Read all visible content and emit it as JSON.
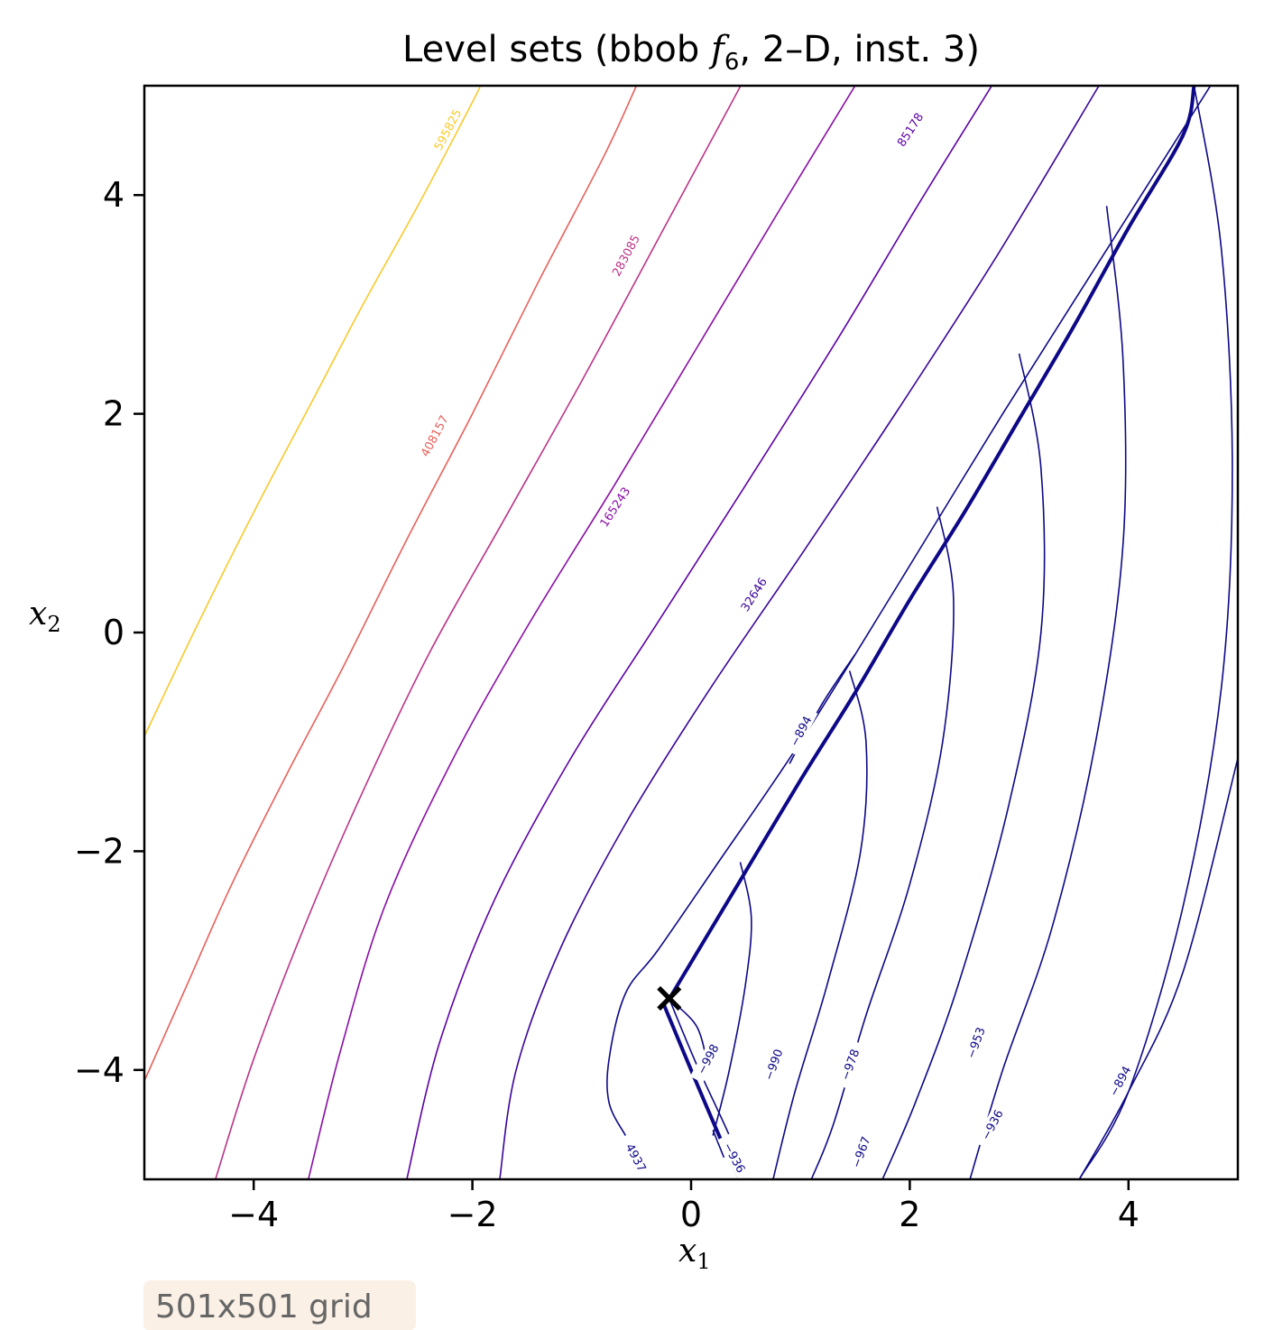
{
  "chart_data": {
    "type": "contour",
    "title_prefix": "Level sets (bbob ",
    "title_f": "f",
    "title_sub": "6",
    "title_suffix": ", 2–D, inst. 3)",
    "xlabel": "x",
    "xlabel_sub": "1",
    "ylabel": "x",
    "ylabel_sub": "2",
    "xlim": [
      -5,
      5
    ],
    "ylim": [
      -5,
      5
    ],
    "xticks": [
      -4,
      -2,
      0,
      2,
      4
    ],
    "yticks": [
      -4,
      -2,
      0,
      2,
      4
    ],
    "xtick_labels": [
      "−4",
      "−2",
      "0",
      "2",
      "4"
    ],
    "ytick_labels": [
      "−4",
      "−2",
      "0",
      "2",
      "4"
    ],
    "grid": false,
    "optimum": {
      "x": -0.2,
      "y": -3.35,
      "marker": "×",
      "color": "#000000"
    },
    "badge": "501x501 grid",
    "levels": [
      {
        "label": "595825",
        "color": "#f9c929",
        "points": [
          [
            -5,
            -0.95
          ],
          [
            -4.5,
            0.1
          ],
          [
            -4,
            1.1
          ],
          [
            -3.5,
            2.05
          ],
          [
            -3,
            3.0
          ],
          [
            -2.5,
            3.9
          ],
          [
            -2,
            4.85
          ],
          [
            -1.93,
            5
          ]
        ],
        "label_at": [
          -2.23,
          4.6
        ],
        "label_angle": -62
      },
      {
        "label": "408157",
        "color": "#e8605a",
        "points": [
          [
            -5,
            -4.1
          ],
          [
            -4.6,
            -3.2
          ],
          [
            -4.2,
            -2.3
          ],
          [
            -3.7,
            -1.3
          ],
          [
            -3.2,
            -0.35
          ],
          [
            -2.6,
            0.85
          ],
          [
            -2.0,
            2.0
          ],
          [
            -1.4,
            3.2
          ],
          [
            -0.8,
            4.35
          ],
          [
            -0.5,
            5
          ]
        ],
        "label_at": [
          -2.35,
          1.8
        ],
        "label_angle": -62
      },
      {
        "label": "283085",
        "color": "#bb3488",
        "points": [
          [
            -4.35,
            -5
          ],
          [
            -4.0,
            -3.9
          ],
          [
            -3.5,
            -2.6
          ],
          [
            -3.0,
            -1.45
          ],
          [
            -2.4,
            -0.2
          ],
          [
            -1.7,
            1.05
          ],
          [
            -1.0,
            2.3
          ],
          [
            -0.3,
            3.6
          ],
          [
            0.4,
            4.9
          ],
          [
            0.45,
            5
          ]
        ],
        "label_at": [
          -0.6,
          3.45
        ],
        "label_angle": -62
      },
      {
        "label": "165243",
        "color": "#8a0ea5",
        "points": [
          [
            -3.5,
            -5
          ],
          [
            -3.2,
            -3.8
          ],
          [
            -2.8,
            -2.5
          ],
          [
            -2.2,
            -1.2
          ],
          [
            -1.5,
            0.05
          ],
          [
            -0.7,
            1.35
          ],
          [
            0.05,
            2.6
          ],
          [
            0.8,
            3.85
          ],
          [
            1.5,
            5
          ]
        ],
        "label_at": [
          -0.7,
          1.15
        ],
        "label_angle": -57
      },
      {
        "label": "85178",
        "color": "#5c01a6",
        "points": [
          [
            -2.6,
            -5
          ],
          [
            -2.3,
            -3.75
          ],
          [
            -1.8,
            -2.45
          ],
          [
            -1.1,
            -1.15
          ],
          [
            -0.3,
            0.1
          ],
          [
            0.5,
            1.35
          ],
          [
            1.35,
            2.7
          ],
          [
            2.1,
            3.95
          ],
          [
            2.75,
            5
          ]
        ],
        "label_at": [
          2.0,
          4.6
        ],
        "label_angle": -57
      },
      {
        "label": "32646",
        "color": "#3a049a",
        "points": [
          [
            -1.75,
            -5
          ],
          [
            -1.6,
            -4.0
          ],
          [
            -1.2,
            -2.9
          ],
          [
            -0.6,
            -1.75
          ],
          [
            0.15,
            -0.55
          ],
          [
            1.0,
            0.7
          ],
          [
            1.9,
            2.05
          ],
          [
            2.8,
            3.45
          ],
          [
            3.7,
            4.95
          ],
          [
            3.73,
            5
          ]
        ],
        "label_at": [
          0.57,
          0.35
        ],
        "label_angle": -57
      },
      {
        "label": "4937",
        "color": "#0d0887",
        "points": [
          [
            -0.6,
            -4.6
          ],
          [
            -0.75,
            -4.3
          ],
          [
            -0.75,
            -3.9
          ],
          [
            -0.6,
            -3.3
          ],
          [
            -0.3,
            -2.9
          ],
          [
            0.25,
            -2.1
          ],
          [
            1.0,
            -1.0
          ],
          [
            1.9,
            0.45
          ],
          [
            2.85,
            2.0
          ],
          [
            3.8,
            3.5
          ],
          [
            4.75,
            5
          ]
        ],
        "label_at": [
          -0.5,
          -4.8
        ],
        "label_angle": 62
      },
      {
        "label": "−894",
        "color": "#0d0887",
        "points": [
          [
            3.55,
            -5
          ],
          [
            4.0,
            -4.2
          ],
          [
            4.5,
            -3.1
          ],
          [
            5,
            -1.15
          ]
        ],
        "label_at": [
          3.92,
          -4.1
        ],
        "label_angle": -62
      },
      {
        "label": "",
        "color": "#0d0887",
        "points": [
          [
            -0.2,
            -3.35
          ],
          [
            0.4,
            -2.35
          ],
          [
            1.0,
            -1.35
          ],
          [
            1.5,
            -0.55
          ],
          [
            2.0,
            0.3
          ],
          [
            2.5,
            1.1
          ],
          [
            3.0,
            1.95
          ],
          [
            3.5,
            2.8
          ],
          [
            4.0,
            3.7
          ],
          [
            4.5,
            4.55
          ],
          [
            4.6,
            5
          ]
        ],
        "label_at": null,
        "label_angle": 0
      },
      {
        "label": "−894",
        "color": "#0d0887",
        "points": [
          [
            4.6,
            5
          ],
          [
            4.85,
            3.5
          ],
          [
            4.95,
            1.5
          ],
          [
            4.85,
            -0.5
          ],
          [
            4.5,
            -2.5
          ],
          [
            4.0,
            -4.2
          ],
          [
            3.55,
            -5
          ]
        ],
        "label_at": null,
        "label_angle": 0
      },
      {
        "label": "−936",
        "color": "#0d0887",
        "points": [
          [
            3.8,
            3.9
          ],
          [
            3.95,
            2.5
          ],
          [
            3.95,
            0.8
          ],
          [
            3.7,
            -1.0
          ],
          [
            3.3,
            -2.7
          ],
          [
            2.85,
            -4.0
          ],
          [
            2.55,
            -5
          ]
        ],
        "label_at": [
          2.75,
          -4.5
        ],
        "label_angle": -62
      },
      {
        "label": "−953",
        "color": "#0d0887",
        "points": [
          [
            3.0,
            2.55
          ],
          [
            3.2,
            1.5
          ],
          [
            3.2,
            0.0
          ],
          [
            2.9,
            -1.6
          ],
          [
            2.45,
            -3.2
          ],
          [
            2.05,
            -4.3
          ],
          [
            1.75,
            -5
          ]
        ],
        "label_at": [
          2.6,
          -3.75
        ],
        "label_angle": -70
      },
      {
        "label": "−967",
        "color": "#0d0887",
        "points": [
          [
            2.25,
            1.15
          ],
          [
            2.4,
            0.3
          ],
          [
            2.3,
            -1.0
          ],
          [
            2.0,
            -2.3
          ],
          [
            1.6,
            -3.5
          ],
          [
            1.3,
            -4.5
          ],
          [
            1.1,
            -5
          ]
        ],
        "label_at": [
          1.55,
          -4.75
        ],
        "label_angle": -70
      },
      {
        "label": "−978",
        "color": "#0d0887",
        "points": [
          [
            1.45,
            -0.35
          ],
          [
            1.6,
            -1.0
          ],
          [
            1.55,
            -2.0
          ],
          [
            1.25,
            -3.2
          ],
          [
            0.95,
            -4.2
          ],
          [
            0.75,
            -5
          ]
        ],
        "label_at": [
          1.45,
          -3.95
        ],
        "label_angle": -70
      },
      {
        "label": "−990",
        "color": "#0d0887",
        "points": [
          [
            0.45,
            -2.1
          ],
          [
            0.55,
            -2.6
          ],
          [
            0.5,
            -3.2
          ],
          [
            0.35,
            -4.0
          ],
          [
            0.2,
            -4.6
          ]
        ],
        "label_at": [
          0.75,
          -3.95
        ],
        "label_angle": -70
      },
      {
        "label": "−998",
        "color": "#0d0887",
        "points": [
          [
            -0.2,
            -3.35
          ],
          [
            0.05,
            -3.6
          ],
          [
            0.15,
            -3.95
          ]
        ],
        "label_at": [
          0.15,
          -3.9
        ],
        "label_angle": -62
      },
      {
        "label": "",
        "color": "#0d0887",
        "points": [
          [
            -0.2,
            -3.35
          ],
          [
            0.05,
            -3.95
          ],
          [
            0.35,
            -4.6
          ],
          [
            0.5,
            -5
          ]
        ],
        "label_at": null,
        "label_angle": 0
      },
      {
        "label": "",
        "color": "#0d0887",
        "points": [
          [
            -0.25,
            -3.4
          ],
          [
            0.0,
            -4.0
          ],
          [
            0.3,
            -4.7
          ],
          [
            0.45,
            -5
          ]
        ],
        "label_at": null,
        "label_angle": 0
      },
      {
        "label": "−894",
        "color": "#0d0887",
        "points": [
          [
            0.9,
            -1.2
          ],
          [
            1.2,
            -0.65
          ],
          [
            1.5,
            -0.2
          ]
        ],
        "label_at": [
          1.0,
          -0.9
        ],
        "label_angle": -62
      },
      {
        "label": "−936",
        "color": "#0d0887",
        "points": [
          [
            0.2,
            -4.55
          ],
          [
            0.3,
            -4.8
          ]
        ],
        "label_at": [
          0.4,
          -4.8
        ],
        "label_angle": 62
      }
    ]
  }
}
